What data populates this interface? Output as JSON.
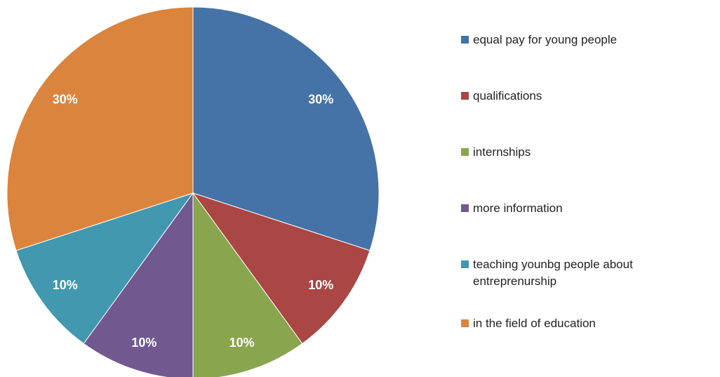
{
  "chart_data": {
    "type": "pie",
    "categories": [
      "equal pay for young people",
      "qualifications",
      "internships",
      "more information",
      "teaching younbg people about entreprenurship",
      "in the field of education"
    ],
    "values": [
      30,
      10,
      10,
      10,
      10,
      30
    ],
    "value_labels": [
      "30%",
      "10%",
      "10%",
      "10%",
      "10%",
      "30%"
    ],
    "colors": [
      "#4572a7",
      "#aa4643",
      "#89a54e",
      "#71588f",
      "#4198af",
      "#db843d"
    ],
    "legend": "right"
  }
}
